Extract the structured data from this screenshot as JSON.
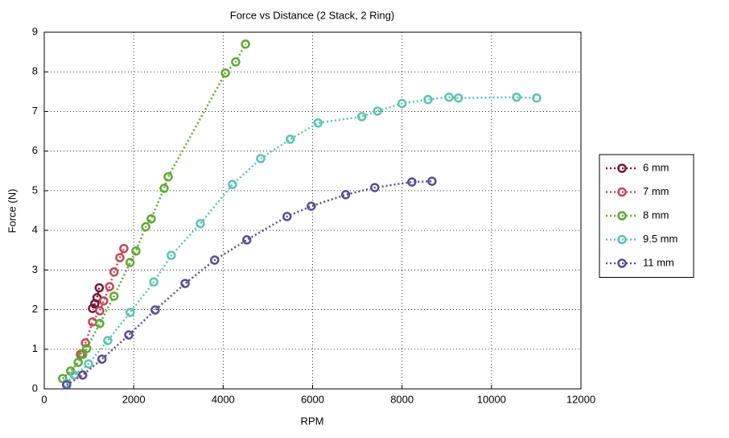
{
  "chart_data": {
    "type": "line",
    "title": "Force vs Distance (2 Stack, 2 Ring)",
    "x_label": "RPM",
    "y_label": "Force (N)",
    "xlim": [
      0,
      12000
    ],
    "ylim": [
      0,
      9
    ],
    "xticks": [
      0,
      2000,
      4000,
      6000,
      8000,
      10000,
      12000
    ],
    "yticks": [
      0,
      1,
      2,
      3,
      4,
      5,
      6,
      7,
      8,
      9
    ],
    "grid": true,
    "legend": "outside-right",
    "series": [
      {
        "name": "6 mm",
        "color": "#7a1437",
        "x": [
          1080,
          1130,
          1180,
          1230
        ],
        "values": [
          2.03,
          2.15,
          2.3,
          2.55
        ]
      },
      {
        "name": "7 mm",
        "color": "#c04a5c",
        "x": [
          810,
          920,
          1080,
          1240,
          1330,
          1460,
          1560,
          1690,
          1780
        ],
        "values": [
          0.87,
          1.16,
          1.69,
          1.97,
          2.22,
          2.58,
          2.95,
          3.31,
          3.54
        ]
      },
      {
        "name": "8 mm",
        "color": "#5fa832",
        "x": [
          410,
          590,
          760,
          860,
          950,
          1240,
          1560,
          1920,
          2050,
          2270,
          2390,
          2680,
          2770,
          4050,
          4280,
          4500
        ],
        "values": [
          0.26,
          0.45,
          0.67,
          0.87,
          1.02,
          1.65,
          2.34,
          3.19,
          3.48,
          4.09,
          4.29,
          5.06,
          5.35,
          7.97,
          8.25,
          8.7
        ]
      },
      {
        "name": "9.5 mm",
        "color": "#5cc3b1",
        "x": [
          500,
          670,
          990,
          1420,
          1920,
          2450,
          2840,
          3490,
          4210,
          4840,
          5500,
          6120,
          7100,
          7450,
          8000,
          8580,
          9050,
          9260,
          10560,
          11010
        ],
        "values": [
          0.14,
          0.35,
          0.63,
          1.22,
          1.93,
          2.7,
          3.37,
          4.17,
          5.16,
          5.81,
          6.3,
          6.71,
          6.87,
          7.01,
          7.2,
          7.3,
          7.36,
          7.34,
          7.36,
          7.34
        ]
      },
      {
        "name": "11 mm",
        "color": "#5a4d8e",
        "x": [
          500,
          860,
          1290,
          1890,
          2480,
          3150,
          3810,
          4530,
          5430,
          5970,
          6740,
          7390,
          8220,
          8670
        ],
        "values": [
          0.1,
          0.35,
          0.75,
          1.36,
          1.99,
          2.66,
          3.25,
          3.76,
          4.35,
          4.61,
          4.9,
          5.08,
          5.22,
          5.24
        ]
      }
    ]
  }
}
